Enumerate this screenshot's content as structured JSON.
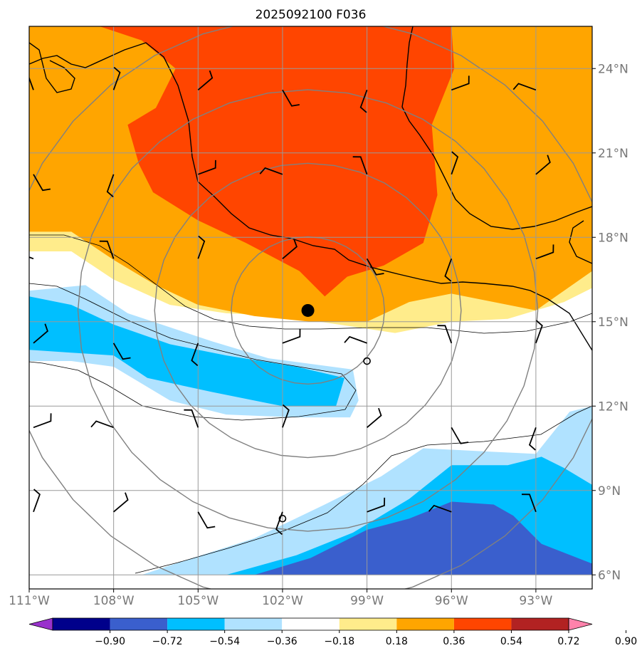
{
  "chart_data": {
    "type": "heatmap",
    "title": "2025092100 F036",
    "projection": "lat-lon map",
    "lon_range": [
      -111,
      -91
    ],
    "lat_range": [
      5.5,
      25.5
    ],
    "x_ticks": [
      {
        "value": -111,
        "label": "111°W"
      },
      {
        "value": -108,
        "label": "108°W"
      },
      {
        "value": -105,
        "label": "105°W"
      },
      {
        "value": -102,
        "label": "102°W"
      },
      {
        "value": -99,
        "label": "99°W"
      },
      {
        "value": -96,
        "label": "96°W"
      },
      {
        "value": -93,
        "label": "93°W"
      }
    ],
    "y_ticks": [
      {
        "value": 24,
        "label": "24°N"
      },
      {
        "value": 21,
        "label": "21°N"
      },
      {
        "value": 18,
        "label": "18°N"
      },
      {
        "value": 15,
        "label": "15°N"
      },
      {
        "value": 12,
        "label": "12°N"
      },
      {
        "value": 9,
        "label": "9°N"
      },
      {
        "value": 6,
        "label": "6°N"
      }
    ],
    "grid": true,
    "colorbar": {
      "boundaries": [
        -0.9,
        -0.72,
        -0.54,
        -0.36,
        -0.18,
        0.18,
        0.36,
        0.54,
        0.72,
        0.9
      ],
      "labels": [
        "−0.90",
        "−0.72",
        "−0.54",
        "−0.36",
        "−0.18",
        "0.18",
        "0.36",
        "0.54",
        "0.72",
        "0.90"
      ],
      "colors": [
        "#9932CC",
        "#00008B",
        "#3A5FCD",
        "#00BFFF",
        "#B0E2FF",
        "#FFFFFF",
        "#FFEC8B",
        "#FFA500",
        "#FF4500",
        "#B22222",
        "#FF82AB"
      ],
      "extend": "both"
    },
    "center_marker": {
      "lon": -101.1,
      "lat": 15.4,
      "label": "storm center"
    },
    "range_rings_deg_radius": [
      2.75,
      5.5,
      8.25,
      11.0
    ],
    "filled_regions": [
      {
        "level": "0.18 to 0.36",
        "color": "#FFEC8B",
        "polygon": [
          [
            -111,
            25.5
          ],
          [
            -91,
            25.5
          ],
          [
            -91,
            16.2
          ],
          [
            -92,
            15.7
          ],
          [
            -94,
            15.1
          ],
          [
            -96,
            15.0
          ],
          [
            -98,
            14.6
          ],
          [
            -100,
            14.9
          ],
          [
            -102,
            15.2
          ],
          [
            -104,
            15.3
          ],
          [
            -106,
            15.6
          ],
          [
            -108,
            16.5
          ],
          [
            -109.5,
            17.5
          ],
          [
            -111,
            17.5
          ]
        ]
      },
      {
        "level": "0.36 to 0.54",
        "color": "#FFA500",
        "polygon": [
          [
            -111,
            25.5
          ],
          [
            -91,
            25.5
          ],
          [
            -91,
            16.8
          ],
          [
            -93,
            15.4
          ],
          [
            -96,
            16.0
          ],
          [
            -97.5,
            15.7
          ],
          [
            -99,
            15.0
          ],
          [
            -101,
            15.0
          ],
          [
            -103,
            15.2
          ],
          [
            -105,
            15.6
          ],
          [
            -106.5,
            16.3
          ],
          [
            -108,
            17.2
          ],
          [
            -109.5,
            18.2
          ],
          [
            -111,
            18.2
          ]
        ]
      },
      {
        "level": "0.54 to 0.72",
        "color": "#FF4500",
        "polygon": [
          [
            -108.5,
            25.5
          ],
          [
            -96,
            25.5
          ],
          [
            -95.9,
            24.0
          ],
          [
            -96.7,
            22.0
          ],
          [
            -96.5,
            19.5
          ],
          [
            -97.0,
            17.8
          ],
          [
            -98.4,
            17.0
          ],
          [
            -99.7,
            16.6
          ],
          [
            -100.5,
            15.9
          ],
          [
            -101.4,
            16.8
          ],
          [
            -103.3,
            17.8
          ],
          [
            -105.0,
            18.6
          ],
          [
            -106.6,
            19.6
          ],
          [
            -107.1,
            20.6
          ],
          [
            -107.5,
            22.0
          ],
          [
            -106.5,
            22.6
          ],
          [
            -105.8,
            24.0
          ],
          [
            -107.0,
            25.0
          ]
        ]
      },
      {
        "level": "-0.36 to -0.18",
        "color": "#B0E2FF",
        "polygon": [
          [
            -111,
            16.1
          ],
          [
            -109,
            16.3
          ],
          [
            -107.5,
            15.3
          ],
          [
            -104.5,
            14.3
          ],
          [
            -102.5,
            13.7
          ],
          [
            -99.5,
            13.3
          ],
          [
            -99.3,
            12.2
          ],
          [
            -99.6,
            11.6
          ],
          [
            -101.5,
            11.6
          ],
          [
            -104,
            11.7
          ],
          [
            -106,
            12.2
          ],
          [
            -108,
            13.4
          ],
          [
            -109.5,
            13.6
          ],
          [
            -111,
            13.6
          ]
        ]
      },
      {
        "level": "-0.54 to -0.36",
        "color": "#00BFFF",
        "polygon": [
          [
            -111,
            15.9
          ],
          [
            -109.5,
            15.6
          ],
          [
            -108,
            14.9
          ],
          [
            -106,
            14.2
          ],
          [
            -104,
            13.8
          ],
          [
            -101.5,
            13.4
          ],
          [
            -99.8,
            13.0
          ],
          [
            -100.1,
            12.0
          ],
          [
            -102,
            12.0
          ],
          [
            -104.5,
            12.5
          ],
          [
            -106.8,
            13.0
          ],
          [
            -108,
            13.8
          ],
          [
            -109.5,
            13.9
          ],
          [
            -111,
            14.0
          ]
        ]
      },
      {
        "level": "-0.36 to -0.18",
        "color": "#B0E2FF",
        "polygon": [
          [
            -107,
            6.0
          ],
          [
            -105.5,
            6.5
          ],
          [
            -103,
            7.3
          ],
          [
            -100.5,
            8.5
          ],
          [
            -98.5,
            9.5
          ],
          [
            -97,
            10.5
          ],
          [
            -95,
            10.4
          ],
          [
            -93,
            10.3
          ],
          [
            -91.8,
            11.8
          ],
          [
            -91,
            12.0
          ],
          [
            -91,
            6.0
          ]
        ]
      },
      {
        "level": "-0.54 to -0.36",
        "color": "#00BFFF",
        "polygon": [
          [
            -104,
            6.0
          ],
          [
            -101.5,
            6.7
          ],
          [
            -99.5,
            7.5
          ],
          [
            -97.5,
            8.7
          ],
          [
            -96,
            9.9
          ],
          [
            -94,
            9.9
          ],
          [
            -92.8,
            10.2
          ],
          [
            -92,
            9.8
          ],
          [
            -91,
            9.2
          ],
          [
            -91,
            6.0
          ]
        ]
      },
      {
        "level": "-0.72 to -0.54",
        "color": "#3A5FCD",
        "polygon": [
          [
            -103,
            6.0
          ],
          [
            -101,
            6.6
          ],
          [
            -99,
            7.6
          ],
          [
            -97.5,
            8.0
          ],
          [
            -96,
            8.6
          ],
          [
            -94.5,
            8.5
          ],
          [
            -93.8,
            8.1
          ],
          [
            -92.8,
            7.1
          ],
          [
            -91,
            6.4
          ],
          [
            -91,
            6.0
          ]
        ]
      }
    ],
    "wind_barb_grid": {
      "lons": [
        -111,
        -108,
        -105,
        -102,
        -99,
        -96,
        -93
      ],
      "lats": [
        24,
        21,
        18,
        15,
        12,
        9,
        6
      ]
    },
    "calm_wind_circles": [
      {
        "lon": -99,
        "lat": 13.6
      },
      {
        "lon": -102,
        "lat": 8.0
      }
    ]
  }
}
